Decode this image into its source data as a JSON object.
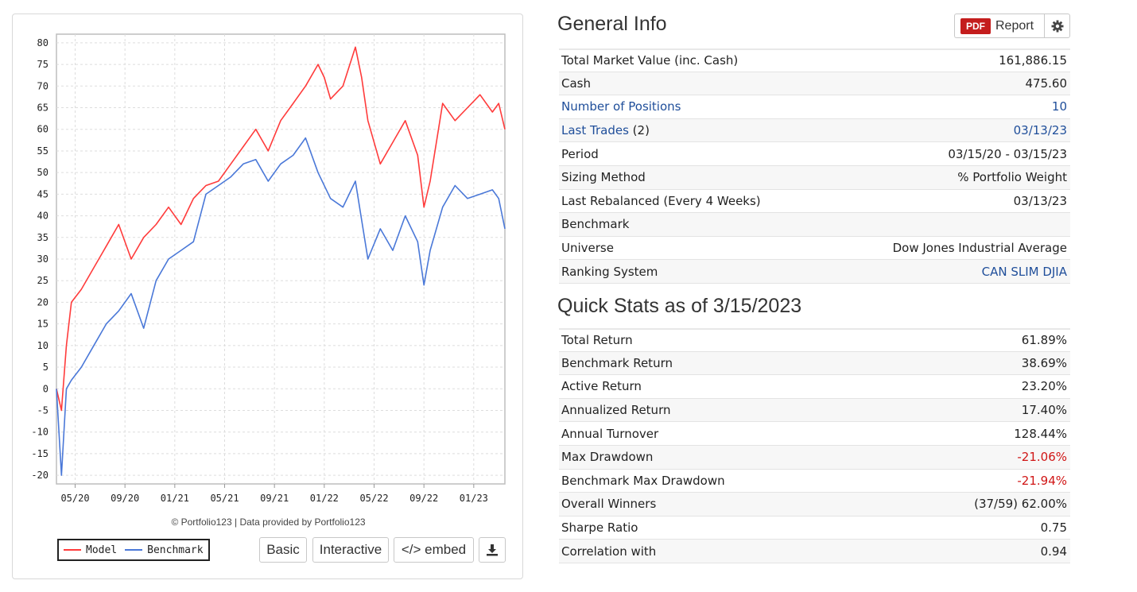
{
  "general_info": {
    "title": "General Info",
    "report_button": {
      "badge": "PDF",
      "label": "Report"
    },
    "rows": [
      {
        "label": "Total Market Value (inc. Cash)",
        "value": "161,886.15"
      },
      {
        "label": "Cash",
        "value": "475.60"
      },
      {
        "label": "Number of Positions",
        "value": "10",
        "label_link": true,
        "value_link": true
      },
      {
        "label": "Last Trades",
        "label_suffix": " (2)",
        "value": "03/13/23",
        "label_link": true,
        "value_link": true
      },
      {
        "label": "Period",
        "value": "03/15/20 - 03/15/23"
      },
      {
        "label": "Sizing Method",
        "value": "% Portfolio Weight"
      },
      {
        "label": "Last Rebalanced (Every 4 Weeks)",
        "value": "03/13/23"
      },
      {
        "label": "Benchmark",
        "value": ""
      },
      {
        "label": "Universe",
        "value": "Dow Jones Industrial Average"
      },
      {
        "label": "Ranking System",
        "value": "CAN SLIM DJIA",
        "value_link": true
      }
    ]
  },
  "quick_stats": {
    "title": "Quick Stats as of 3/15/2023",
    "rows": [
      {
        "label": "Total Return",
        "value": "61.89%"
      },
      {
        "label": "Benchmark Return",
        "value": "38.69%"
      },
      {
        "label": "Active Return",
        "value": "23.20%"
      },
      {
        "label": "Annualized Return",
        "value": "17.40%"
      },
      {
        "label": "Annual Turnover",
        "value": "128.44%"
      },
      {
        "label": "Max Drawdown",
        "value": "-21.06%",
        "negative": true
      },
      {
        "label": "Benchmark Max Drawdown",
        "value": "-21.94%",
        "negative": true
      },
      {
        "label": "Overall Winners",
        "value": "(37/59) 62.00%"
      },
      {
        "label": "Sharpe Ratio",
        "value": "0.75"
      },
      {
        "label": "Correlation with",
        "value": "0.94"
      }
    ]
  },
  "chart_panel": {
    "credit": "© Portfolio123 | Data provided by Portfolio123",
    "buttons": {
      "basic": "Basic",
      "interactive": "Interactive",
      "embed": "</> embed"
    }
  },
  "colors": {
    "model": "#ff3b3b",
    "benchmark": "#4a78d8",
    "link": "#1f4e9a",
    "negative": "#d01515"
  },
  "chart_data": {
    "type": "line",
    "ylim": [
      -22,
      82
    ],
    "yticks": [
      80,
      75,
      70,
      65,
      60,
      55,
      50,
      45,
      40,
      35,
      30,
      25,
      20,
      15,
      10,
      5,
      0,
      -5,
      -10,
      -15,
      -20
    ],
    "xticks": [
      "05/20",
      "09/20",
      "01/21",
      "05/21",
      "09/21",
      "01/22",
      "05/22",
      "09/22",
      "01/23"
    ],
    "xlim_months": [
      0,
      36
    ],
    "xtick_months": [
      1.5,
      5.5,
      9.5,
      13.5,
      17.5,
      21.5,
      25.5,
      29.5,
      33.5
    ],
    "series": [
      {
        "name": "Model",
        "x": [
          0,
          0.4,
          0.8,
          1.2,
          2,
          3,
          4,
          5,
          6,
          7,
          8,
          9,
          10,
          11,
          12,
          13,
          14,
          15,
          16,
          17,
          18,
          19,
          20,
          21,
          21.5,
          22,
          23,
          24,
          24.5,
          25,
          26,
          27,
          28,
          29,
          29.5,
          30,
          31,
          32,
          33,
          34,
          35,
          35.5,
          36
        ],
        "values": [
          0,
          -5,
          10,
          20,
          23,
          28,
          33,
          38,
          30,
          35,
          38,
          42,
          38,
          44,
          47,
          48,
          52,
          56,
          60,
          55,
          62,
          66,
          70,
          75,
          72,
          67,
          70,
          79,
          72,
          62,
          52,
          57,
          62,
          54,
          42,
          48,
          66,
          62,
          65,
          68,
          64,
          66,
          60
        ]
      },
      {
        "name": "Benchmark",
        "x": [
          0,
          0.4,
          0.8,
          1.2,
          2,
          3,
          4,
          5,
          6,
          7,
          8,
          9,
          10,
          11,
          12,
          13,
          14,
          15,
          16,
          17,
          18,
          19,
          20,
          21,
          22,
          23,
          24,
          25,
          26,
          27,
          28,
          29,
          29.5,
          30,
          31,
          32,
          33,
          34,
          35,
          35.5,
          36
        ],
        "values": [
          0,
          -20,
          0,
          2,
          5,
          10,
          15,
          18,
          22,
          14,
          25,
          30,
          32,
          34,
          45,
          47,
          49,
          52,
          53,
          48,
          52,
          54,
          58,
          50,
          44,
          42,
          48,
          30,
          37,
          32,
          40,
          34,
          24,
          32,
          42,
          47,
          44,
          45,
          46,
          44,
          37
        ]
      }
    ]
  }
}
